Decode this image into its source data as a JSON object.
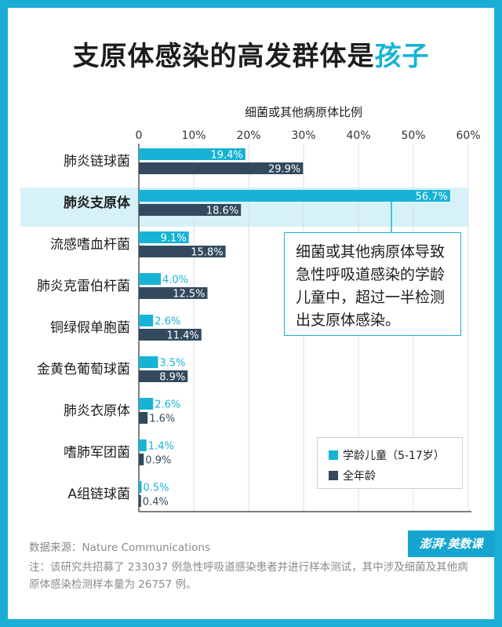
{
  "title": {
    "main": "支原体感染的高发群体是",
    "highlight": "孩子"
  },
  "colors": {
    "border": "#1aaed6",
    "child": "#17b3d6",
    "all": "#334a5e",
    "highlight_band": "#d6f1f8"
  },
  "chart_data": {
    "type": "bar",
    "orientation": "horizontal",
    "xlabel": "细菌或其他病原体比例",
    "xlim": [
      0,
      60
    ],
    "xticks": [
      "0",
      "10%",
      "20%",
      "30%",
      "40%",
      "50%",
      "60%"
    ],
    "categories": [
      "肺炎链球菌",
      "肺炎支原体",
      "流感嗜血杆菌",
      "肺炎克雷伯杆菌",
      "铜绿假单胞菌",
      "金黄色葡萄球菌",
      "肺炎衣原体",
      "嗜肺军团菌",
      "A组链球菌"
    ],
    "highlight_category": "肺炎支原体",
    "series": [
      {
        "name": "学龄儿童（5-17岁）",
        "values": [
          19.4,
          56.7,
          9.1,
          4.0,
          2.6,
          3.5,
          2.6,
          1.4,
          0.5
        ],
        "labels": [
          "19.4%",
          "56.7%",
          "9.1%",
          "4.0%",
          "2.6%",
          "3.5%",
          "2.6%",
          "1.4%",
          "0.5%"
        ]
      },
      {
        "name": "全年龄",
        "values": [
          29.9,
          18.6,
          15.8,
          12.5,
          11.4,
          8.9,
          1.6,
          0.9,
          0.4
        ],
        "labels": [
          "29.9%",
          "18.6%",
          "15.8%",
          "12.5%",
          "11.4%",
          "8.9%",
          "1.6%",
          "0.9%",
          "0.4%"
        ]
      }
    ],
    "legend_position": "bottom-right",
    "grid": true,
    "annotation": "细菌或其他病原体导致急性呼吸道感染的学龄儿童中，超过一半检测出支原体感染。"
  },
  "footer": {
    "source": "数据来源：Nature Communications",
    "note": "注：该研究共招募了 233037 例急性呼吸道感染患者并进行样本测试，其中涉及细菌及其他病原体感染检测样本量为 26757 例。",
    "logo": "澎湃·美数课"
  }
}
